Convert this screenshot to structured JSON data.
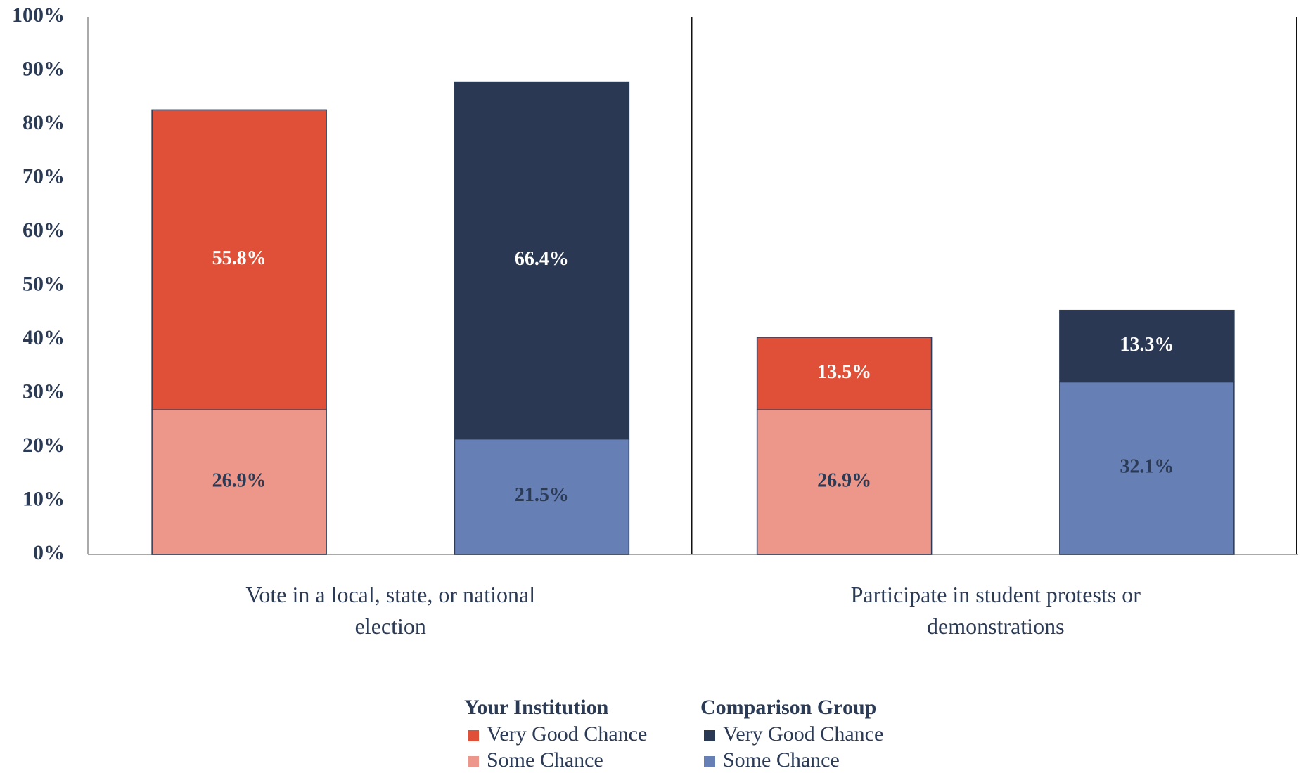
{
  "chart_data": {
    "type": "bar",
    "stacked": true,
    "categories": [
      "Vote in a local, state, or national election",
      "Participate in student protests or demonstrations"
    ],
    "stacks": [
      {
        "name": "Your Institution",
        "series": [
          {
            "name": "Some Chance",
            "color": "#ed968a",
            "label_color": "#2b3a55",
            "values": [
              26.9,
              26.9
            ],
            "value_labels": [
              "26.9%",
              "26.9%"
            ]
          },
          {
            "name": "Very Good Chance",
            "color": "#e04f37",
            "label_color": "#ffffff",
            "values": [
              55.8,
              13.5
            ],
            "value_labels": [
              "55.8%",
              "13.5%"
            ]
          }
        ]
      },
      {
        "name": "Comparison Group",
        "series": [
          {
            "name": "Some Chance",
            "color": "#6680b6",
            "label_color": "#2b3a55",
            "values": [
              21.5,
              32.1
            ],
            "value_labels": [
              "21.5%",
              "32.1%"
            ]
          },
          {
            "name": "Very Good Chance",
            "color": "#2a3853",
            "label_color": "#ffffff",
            "values": [
              66.4,
              13.3
            ],
            "value_labels": [
              "66.4%",
              "13.3%"
            ]
          }
        ]
      }
    ],
    "ylim": [
      0,
      100
    ],
    "yticks": [
      {
        "value": 0,
        "label": "0%"
      },
      {
        "value": 10,
        "label": "10%"
      },
      {
        "value": 20,
        "label": "20%"
      },
      {
        "value": 30,
        "label": "30%"
      },
      {
        "value": 40,
        "label": "40%"
      },
      {
        "value": 50,
        "label": "50%"
      },
      {
        "value": 60,
        "label": "60%"
      },
      {
        "value": 70,
        "label": "70%"
      },
      {
        "value": 80,
        "label": "80%"
      },
      {
        "value": 90,
        "label": "90%"
      },
      {
        "value": 100,
        "label": "100%"
      }
    ]
  }
}
